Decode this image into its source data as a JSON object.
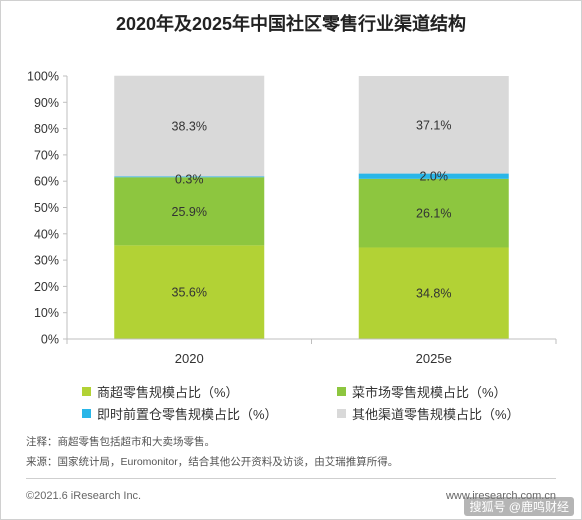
{
  "title": "2020年及2025年中国社区零售行业渠道结构",
  "colors": {
    "supermarket": "#b2d235",
    "market": "#8dc63f",
    "instant": "#29b6e8",
    "other": "#d9d9d9"
  },
  "chart_data": {
    "type": "bar",
    "stacked": true,
    "categories": [
      "2020",
      "2025e"
    ],
    "ylim": [
      0,
      100
    ],
    "ytick_labels": [
      "0%",
      "10%",
      "20%",
      "30%",
      "40%",
      "50%",
      "60%",
      "70%",
      "80%",
      "90%",
      "100%"
    ],
    "series": [
      {
        "name": "商超零售规模占比（%）",
        "values": [
          35.6,
          34.8
        ],
        "labels": [
          "35.6%",
          "34.8%"
        ],
        "color_key": "supermarket"
      },
      {
        "name": "菜市场零售规模占比（%）",
        "values": [
          25.9,
          26.1
        ],
        "labels": [
          "25.9%",
          "26.1%"
        ],
        "color_key": "market"
      },
      {
        "name": "即时前置仓零售规模占比（%）",
        "values": [
          0.3,
          2.0
        ],
        "labels": [
          "0.3%",
          "2.0%"
        ],
        "color_key": "instant"
      },
      {
        "name": "其他渠道零售规模占比（%）",
        "values": [
          38.3,
          37.1
        ],
        "labels": [
          "38.3%",
          "37.1%"
        ],
        "color_key": "other"
      }
    ]
  },
  "notes": {
    "note": "注释：商超零售包括超市和大卖场零售。",
    "source": "来源：国家统计局，Euromonitor，结合其他公开资料及访谈，由艾瑞推算所得。"
  },
  "footer": {
    "copyright": "©2021.6 iResearch Inc.",
    "website": "www.iresearch.com.cn",
    "watermark": "搜狐号 @鹿鸣财经"
  }
}
